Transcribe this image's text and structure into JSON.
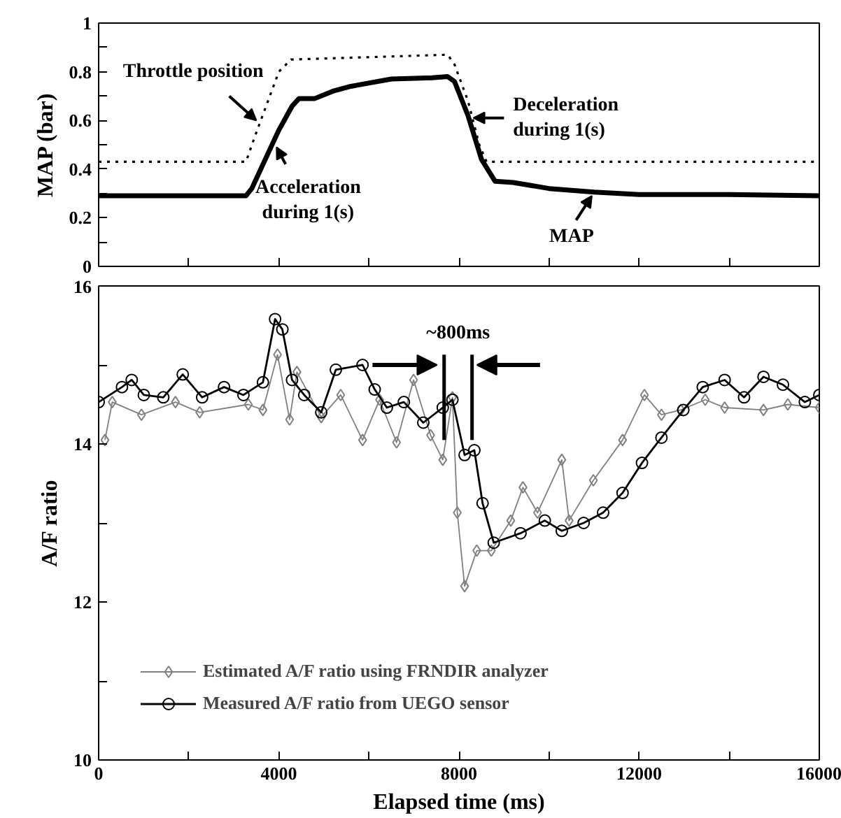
{
  "chart_data": [
    {
      "type": "line",
      "ylabel": "MAP (bar)",
      "xlim": [
        0,
        16000
      ],
      "ylim": [
        0,
        1
      ],
      "xticks": [
        {
          "value": 0,
          "label": null
        },
        {
          "value": 2000,
          "label": null
        },
        {
          "value": 4000,
          "label": null
        },
        {
          "value": 6000,
          "label": null
        },
        {
          "value": 8000,
          "label": null
        },
        {
          "value": 10000,
          "label": null
        },
        {
          "value": 12000,
          "label": null
        },
        {
          "value": 14000,
          "label": null
        },
        {
          "value": 16000,
          "label": null
        }
      ],
      "yticks": [
        0,
        {
          "value": 0.1,
          "label": null
        },
        0.2,
        {
          "value": 0.3,
          "label": null
        },
        0.4,
        {
          "value": 0.5,
          "label": null
        },
        0.6,
        {
          "value": 0.7,
          "label": null
        },
        0.8,
        {
          "value": 0.9,
          "label": null
        },
        1
      ],
      "tick_labels": "y",
      "grid": false,
      "legend": false,
      "series": [
        {
          "color": "#000000",
          "line_style": "dotted",
          "marker": "none",
          "x": [
            0,
            3270,
            3500,
            3800,
            4000,
            4270,
            7750,
            7900,
            8200,
            8450,
            8610,
            16000
          ],
          "values": [
            0.43,
            0.43,
            0.55,
            0.7,
            0.8,
            0.85,
            0.87,
            0.83,
            0.68,
            0.5,
            0.43,
            0.43
          ]
        },
        {
          "color": "#000000",
          "line_style": "solid",
          "marker": "none",
          "x": [
            0,
            3270,
            3400,
            3700,
            4000,
            4300,
            4450,
            4800,
            5200,
            5600,
            6500,
            7400,
            7750,
            7900,
            8200,
            8500,
            8800,
            9200,
            10000,
            11000,
            12000,
            14000,
            16000
          ],
          "values": [
            0.29,
            0.29,
            0.32,
            0.44,
            0.56,
            0.66,
            0.69,
            0.69,
            0.72,
            0.74,
            0.77,
            0.775,
            0.78,
            0.76,
            0.62,
            0.44,
            0.35,
            0.345,
            0.32,
            0.305,
            0.295,
            0.295,
            0.29
          ]
        }
      ],
      "annotations": [
        {
          "text": "Throttle position",
          "x": 3500,
          "y": 0.6
        },
        {
          "text": "Acceleration\nduring 1(s)",
          "x": 3950,
          "y": 0.49
        },
        {
          "text": "Deceleration\nduring 1(s)",
          "x": 8440,
          "y": 0.61
        },
        {
          "text": "MAP",
          "x": 10950,
          "y": 0.29
        }
      ]
    },
    {
      "type": "line",
      "xlabel": "Elapsed time (ms)",
      "ylabel": "A/F ratio",
      "xlim": [
        0,
        16000
      ],
      "ylim": [
        10,
        16
      ],
      "xticks": [
        0,
        {
          "value": 2000,
          "label": null
        },
        4000,
        {
          "value": 6000,
          "label": null
        },
        8000,
        {
          "value": 10000,
          "label": null
        },
        12000,
        {
          "value": 14000,
          "label": null
        },
        16000
      ],
      "yticks": [
        10,
        {
          "value": 11,
          "label": null
        },
        12,
        {
          "value": 13,
          "label": null
        },
        14,
        {
          "value": 15,
          "label": null
        },
        16
      ],
      "grid": false,
      "legend": "bottom left",
      "series": [
        {
          "name": "Estimated A/F ratio using FRNDIR analyzer",
          "color": "#808080",
          "line_style": "solid",
          "marker": "diamond",
          "x": [
            140,
            302,
            950,
            1705,
            2244,
            3323,
            3647,
            3971,
            4240,
            4402,
            4942,
            5374,
            5859,
            6237,
            6614,
            6992,
            7370,
            7640,
            7855,
            7963,
            8125,
            8395,
            8718,
            9150,
            9420,
            9744,
            10283,
            10445,
            10984,
            11632,
            12117,
            12495,
            12927,
            13467,
            13898,
            14761,
            15301,
            16000
          ],
          "values": [
            14.05,
            14.53,
            14.37,
            14.53,
            14.4,
            14.5,
            14.43,
            15.13,
            14.31,
            14.91,
            14.34,
            14.62,
            14.05,
            14.56,
            14.02,
            14.81,
            14.11,
            13.8,
            14.59,
            13.13,
            12.2,
            12.65,
            12.65,
            13.03,
            13.45,
            13.13,
            13.8,
            13.03,
            13.54,
            14.05,
            14.62,
            14.37,
            14.43,
            14.56,
            14.46,
            14.43,
            14.5,
            14.46
          ]
        },
        {
          "name": "Measured A/F ratio from UEGO sensor",
          "color": "#000000",
          "line_style": "solid",
          "marker": "circle",
          "x": [
            0,
            518,
            734,
            1003,
            1435,
            1867,
            2298,
            2784,
            3215,
            3647,
            3917,
            4079,
            4294,
            4564,
            4942,
            5266,
            5859,
            6129,
            6398,
            6776,
            7208,
            7640,
            7855,
            8125,
            8341,
            8524,
            8772,
            9366,
            9906,
            10283,
            10768,
            11200,
            11632,
            12063,
            12495,
            12981,
            13412,
            13898,
            14329,
            14761,
            15193,
            15679,
            16000
          ],
          "values": [
            14.53,
            14.72,
            14.81,
            14.62,
            14.59,
            14.88,
            14.59,
            14.72,
            14.62,
            14.78,
            15.58,
            15.45,
            14.81,
            14.62,
            14.4,
            14.94,
            15.0,
            14.69,
            14.46,
            14.53,
            14.27,
            14.46,
            14.56,
            13.86,
            13.92,
            13.25,
            12.75,
            12.87,
            13.03,
            12.9,
            13.0,
            13.13,
            13.38,
            13.76,
            14.08,
            14.43,
            14.72,
            14.81,
            14.59,
            14.85,
            14.75,
            14.53,
            14.62
          ]
        }
      ],
      "ref_lines": [
        {
          "axis": "x",
          "value": 7670,
          "label": "~800ms"
        },
        {
          "axis": "x",
          "value": 8290
        }
      ]
    }
  ]
}
